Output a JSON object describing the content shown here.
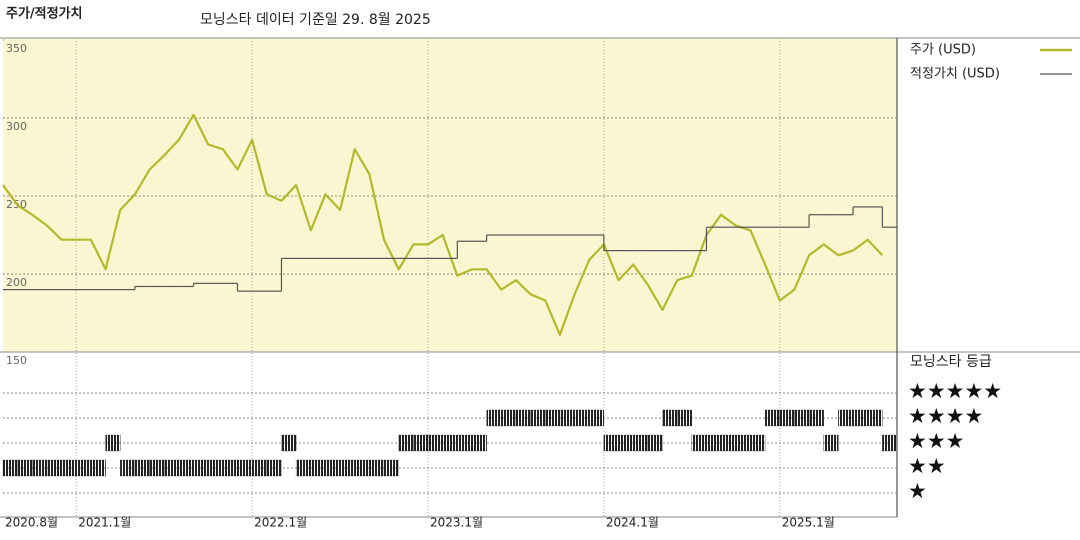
{
  "chart_data": [
    {
      "type": "line",
      "title": "주가/적정가치",
      "subtitle": "모닝스타 데이터 기준일 29. 8월 2025",
      "x": [
        "2020-08",
        "2020-09",
        "2020-10",
        "2020-11",
        "2020-12",
        "2021-01",
        "2021-02",
        "2021-03",
        "2021-04",
        "2021-05",
        "2021-06",
        "2021-07",
        "2021-08",
        "2021-09",
        "2021-10",
        "2021-11",
        "2021-12",
        "2022-01",
        "2022-02",
        "2022-03",
        "2022-04",
        "2022-05",
        "2022-06",
        "2022-07",
        "2022-08",
        "2022-09",
        "2022-10",
        "2022-11",
        "2022-12",
        "2023-01",
        "2023-02",
        "2023-03",
        "2023-04",
        "2023-05",
        "2023-06",
        "2023-07",
        "2023-08",
        "2023-09",
        "2023-10",
        "2023-11",
        "2023-12",
        "2024-01",
        "2024-02",
        "2024-03",
        "2024-04",
        "2024-05",
        "2024-06",
        "2024-07",
        "2024-08",
        "2024-09",
        "2024-10",
        "2024-11",
        "2024-12",
        "2025-01",
        "2025-02",
        "2025-03",
        "2025-04",
        "2025-05",
        "2025-06",
        "2025-07",
        "2025-08"
      ],
      "series": [
        {
          "name": "주가 (USD)",
          "color": "#b5b82b",
          "values": [
            257,
            244,
            238,
            231,
            222,
            222,
            222,
            203,
            241,
            251,
            267,
            276,
            286,
            302,
            283,
            280,
            267,
            286,
            251,
            247,
            257,
            228,
            251,
            241,
            280,
            264,
            222,
            203,
            219,
            219,
            225,
            199,
            203,
            203,
            190,
            196,
            187,
            183,
            161,
            187,
            209,
            219,
            196,
            206,
            193,
            177,
            196,
            199,
            225,
            238,
            231,
            228,
            206,
            183,
            190,
            212,
            219,
            212,
            215,
            222,
            212
          ]
        },
        {
          "name": "적정가치 (USD)",
          "color": "#555555",
          "step": true,
          "values": [
            190,
            190,
            190,
            190,
            190,
            190,
            190,
            190,
            190,
            192,
            192,
            192,
            192,
            194,
            194,
            194,
            189,
            189,
            189,
            210,
            210,
            210,
            210,
            210,
            210,
            210,
            210,
            210,
            210,
            210,
            210,
            221,
            221,
            225,
            225,
            225,
            225,
            225,
            225,
            225,
            225,
            215,
            215,
            215,
            215,
            215,
            215,
            215,
            230,
            230,
            230,
            230,
            230,
            230,
            230,
            238,
            238,
            238,
            243,
            243,
            230
          ]
        }
      ],
      "xlim": [
        "2020-08",
        "2025-09"
      ],
      "xticks": [
        {
          "value": "2020-08",
          "label": "2020.8월"
        },
        {
          "value": "2021-01",
          "label": "2021.1월"
        },
        {
          "value": "2022-01",
          "label": "2022.1월"
        },
        {
          "value": "2023-01",
          "label": "2023.1월"
        },
        {
          "value": "2024-01",
          "label": "2024.1월"
        },
        {
          "value": "2025-01",
          "label": "2025.1월"
        }
      ],
      "ylim": [
        150,
        350
      ],
      "yticks": [
        150,
        200,
        250,
        300,
        350
      ],
      "grid": true
    },
    {
      "type": "rating",
      "title": "모닝스타 등급",
      "color": "#222222",
      "x": [
        "2020-08",
        "2020-09",
        "2020-10",
        "2020-11",
        "2020-12",
        "2021-01",
        "2021-02",
        "2021-03",
        "2021-04",
        "2021-05",
        "2021-06",
        "2021-07",
        "2021-08",
        "2021-09",
        "2021-10",
        "2021-11",
        "2021-12",
        "2022-01",
        "2022-02",
        "2022-03",
        "2022-04",
        "2022-05",
        "2022-06",
        "2022-07",
        "2022-08",
        "2022-09",
        "2022-10",
        "2022-11",
        "2022-12",
        "2023-01",
        "2023-02",
        "2023-03",
        "2023-04",
        "2023-05",
        "2023-06",
        "2023-07",
        "2023-08",
        "2023-09",
        "2023-10",
        "2023-11",
        "2023-12",
        "2024-01",
        "2024-02",
        "2024-03",
        "2024-04",
        "2024-05",
        "2024-06",
        "2024-07",
        "2024-08",
        "2024-09",
        "2024-10",
        "2024-11",
        "2024-12",
        "2025-01",
        "2025-02",
        "2025-03",
        "2025-04",
        "2025-05",
        "2025-06",
        "2025-07",
        "2025-08"
      ],
      "values": [
        2,
        2,
        2,
        2,
        2,
        2,
        2,
        3,
        2,
        2,
        2,
        2,
        2,
        2,
        2,
        2,
        2,
        2,
        2,
        3,
        2,
        2,
        2,
        2,
        2,
        2,
        2,
        3,
        3,
        3,
        3,
        3,
        3,
        4,
        4,
        4,
        4,
        4,
        4,
        4,
        4,
        3,
        3,
        3,
        3,
        4,
        4,
        3,
        3,
        3,
        3,
        3,
        4,
        4,
        4,
        4,
        3,
        4,
        4,
        4,
        3
      ],
      "yticks": [
        {
          "value": 5,
          "label": "★★★★★"
        },
        {
          "value": 4,
          "label": "★★★★"
        },
        {
          "value": 3,
          "label": "★★★"
        },
        {
          "value": 2,
          "label": "★★"
        },
        {
          "value": 1,
          "label": "★"
        }
      ]
    }
  ]
}
